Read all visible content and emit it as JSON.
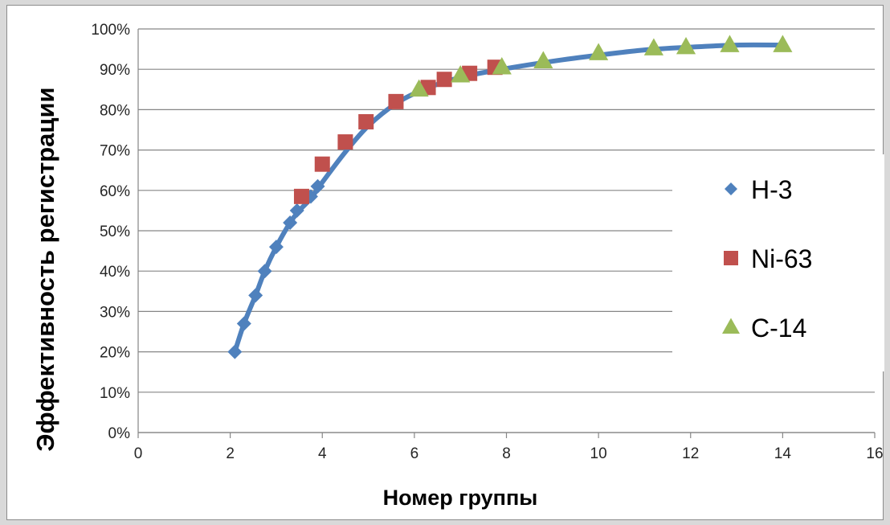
{
  "chart_data": {
    "type": "scatter",
    "title": "",
    "xlabel": "Номер группы",
    "ylabel": "Эффективность регистрации",
    "xlim": [
      0,
      16
    ],
    "ylim": [
      0,
      1
    ],
    "x_ticks": [
      0,
      2,
      4,
      6,
      8,
      10,
      12,
      14,
      16
    ],
    "y_ticks": [
      "0%",
      "10%",
      "20%",
      "30%",
      "40%",
      "50%",
      "60%",
      "70%",
      "80%",
      "90%",
      "100%"
    ],
    "grid": "horizontal",
    "legend_position": "right",
    "trend_curve": {
      "color": "#4f81bd",
      "points": [
        [
          2.1,
          0.2
        ],
        [
          2.3,
          0.27
        ],
        [
          2.55,
          0.34
        ],
        [
          2.75,
          0.4
        ],
        [
          3.0,
          0.46
        ],
        [
          3.3,
          0.52
        ],
        [
          3.5,
          0.55
        ],
        [
          3.75,
          0.58
        ],
        [
          4.0,
          0.62
        ],
        [
          4.5,
          0.695
        ],
        [
          5.0,
          0.76
        ],
        [
          5.6,
          0.815
        ],
        [
          6.2,
          0.85
        ],
        [
          7.0,
          0.88
        ],
        [
          8.0,
          0.902
        ],
        [
          9.0,
          0.92
        ],
        [
          10.0,
          0.935
        ],
        [
          11.0,
          0.948
        ],
        [
          12.0,
          0.955
        ],
        [
          13.0,
          0.96
        ],
        [
          14.0,
          0.96
        ]
      ]
    },
    "series": [
      {
        "name": "H-3",
        "marker": "diamond",
        "color": "#4f81bd",
        "points": [
          [
            2.1,
            0.2
          ],
          [
            2.3,
            0.27
          ],
          [
            2.55,
            0.34
          ],
          [
            2.75,
            0.4
          ],
          [
            3.0,
            0.46
          ],
          [
            3.3,
            0.52
          ],
          [
            3.45,
            0.55
          ],
          [
            3.75,
            0.585
          ],
          [
            3.9,
            0.61
          ]
        ]
      },
      {
        "name": "Ni-63",
        "marker": "square",
        "color": "#c0504d",
        "points": [
          [
            3.55,
            0.585
          ],
          [
            4.0,
            0.665
          ],
          [
            4.5,
            0.72
          ],
          [
            4.95,
            0.77
          ],
          [
            5.6,
            0.82
          ],
          [
            6.3,
            0.855
          ],
          [
            6.65,
            0.875
          ],
          [
            7.2,
            0.89
          ],
          [
            7.75,
            0.905
          ]
        ]
      },
      {
        "name": "C-14",
        "marker": "triangle",
        "color": "#9bbb59",
        "points": [
          [
            6.1,
            0.85
          ],
          [
            7.0,
            0.885
          ],
          [
            7.9,
            0.905
          ],
          [
            8.8,
            0.92
          ],
          [
            10.0,
            0.94
          ],
          [
            11.2,
            0.952
          ],
          [
            11.9,
            0.955
          ],
          [
            12.85,
            0.96
          ],
          [
            14.0,
            0.96
          ]
        ]
      }
    ]
  }
}
